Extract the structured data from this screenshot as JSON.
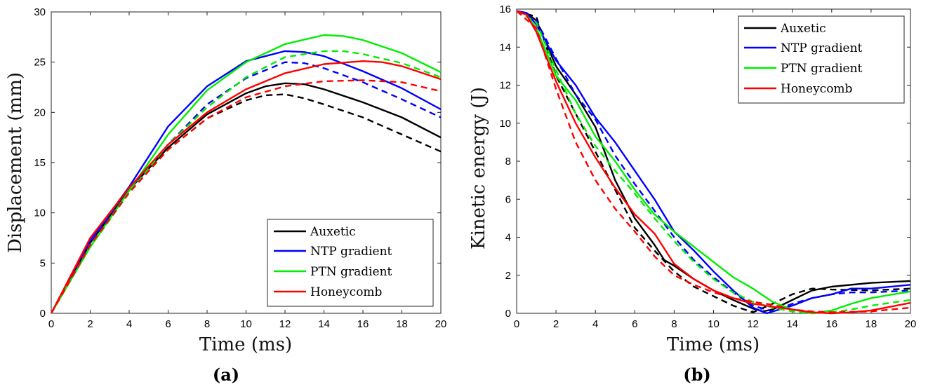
{
  "chart_data": [
    {
      "type": "line",
      "panel_label": "(a)",
      "xlabel": "Time (ms)",
      "ylabel": "Displacement (mm)",
      "xlim": [
        0,
        20
      ],
      "ylim": [
        0,
        30
      ],
      "xticks": [
        0,
        2,
        4,
        6,
        8,
        10,
        12,
        14,
        16,
        18,
        20
      ],
      "yticks": [
        0,
        5,
        10,
        15,
        20,
        25,
        30
      ],
      "grid": false,
      "legend_position": "bottom-right",
      "legend": [
        "Auxetic",
        "NTP gradient",
        "PTN gradient",
        "Honeycomb"
      ],
      "series": [
        {
          "name": "Auxetic",
          "color": "#000000",
          "style": "solid",
          "x": [
            0,
            2,
            4,
            6,
            8,
            10,
            11,
            12,
            13,
            14,
            16,
            18,
            20
          ],
          "y": [
            0,
            7.0,
            12.3,
            16.5,
            19.8,
            21.9,
            22.6,
            22.9,
            22.8,
            22.3,
            21.0,
            19.5,
            17.5
          ]
        },
        {
          "name": "Auxetic (dashed)",
          "color": "#000000",
          "style": "dashed",
          "x": [
            0,
            2,
            4,
            6,
            8,
            10,
            11,
            12,
            13,
            14,
            16,
            18,
            20
          ],
          "y": [
            0,
            6.8,
            12.1,
            16.3,
            19.4,
            21.2,
            21.7,
            21.8,
            21.4,
            20.8,
            19.5,
            17.8,
            16.1
          ]
        },
        {
          "name": "NTP gradient",
          "color": "#0000ff",
          "style": "solid",
          "x": [
            0,
            2,
            4,
            6,
            8,
            10,
            12,
            13,
            14,
            16,
            18,
            20
          ],
          "y": [
            0,
            7.3,
            12.6,
            18.6,
            22.6,
            25.1,
            26.1,
            26.0,
            25.6,
            24.1,
            22.4,
            20.3
          ]
        },
        {
          "name": "NTP gradient (dashed)",
          "color": "#0000ff",
          "style": "dashed",
          "x": [
            0,
            2,
            4,
            6,
            8,
            10,
            12,
            13,
            14,
            16,
            18,
            20
          ],
          "y": [
            0,
            7.0,
            12.2,
            16.8,
            20.8,
            23.4,
            25.0,
            24.9,
            24.4,
            23.0,
            21.3,
            19.5
          ]
        },
        {
          "name": "PTN gradient",
          "color": "#00ee00",
          "style": "solid",
          "x": [
            0,
            2,
            4,
            6,
            8,
            10,
            12,
            14,
            15,
            16,
            18,
            20
          ],
          "y": [
            0,
            6.6,
            12.2,
            17.8,
            22.2,
            25.0,
            26.8,
            27.7,
            27.6,
            27.2,
            25.9,
            24.0
          ]
        },
        {
          "name": "PTN gradient (dashed)",
          "color": "#00ee00",
          "style": "dashed",
          "x": [
            0,
            2,
            4,
            6,
            8,
            10,
            12,
            14,
            15,
            16,
            18,
            20
          ],
          "y": [
            0,
            6.6,
            12.0,
            16.8,
            20.5,
            23.5,
            25.5,
            26.1,
            26.1,
            25.8,
            24.9,
            23.5
          ]
        },
        {
          "name": "Honeycomb",
          "color": "#ff0000",
          "style": "solid",
          "x": [
            0,
            2,
            4,
            6,
            8,
            10,
            12,
            14,
            16,
            17,
            18,
            20
          ],
          "y": [
            0,
            7.5,
            12.5,
            16.8,
            20.0,
            22.3,
            23.9,
            24.8,
            25.1,
            25.0,
            24.6,
            23.3
          ]
        },
        {
          "name": "Honeycomb (dashed)",
          "color": "#ff0000",
          "style": "dashed",
          "x": [
            0,
            2,
            4,
            6,
            8,
            10,
            12,
            14,
            16,
            18,
            20
          ],
          "y": [
            0,
            6.8,
            12.0,
            16.3,
            19.4,
            21.5,
            22.6,
            23.1,
            23.2,
            23.0,
            22.1
          ]
        }
      ]
    },
    {
      "type": "line",
      "panel_label": "(b)",
      "xlabel": "Time (ms)",
      "ylabel": "Kinetic energy (J)",
      "xlim": [
        0,
        20
      ],
      "ylim": [
        0,
        16
      ],
      "xticks": [
        0,
        2,
        4,
        6,
        8,
        10,
        12,
        14,
        16,
        18,
        20
      ],
      "yticks": [
        0,
        2,
        4,
        6,
        8,
        10,
        12,
        14,
        16
      ],
      "grid": false,
      "legend_position": "top-right",
      "legend": [
        "Auxetic",
        "NTP gradient",
        "PTN gradient",
        "Honeycomb"
      ],
      "series": [
        {
          "name": "Auxetic",
          "color": "#000000",
          "style": "solid",
          "x": [
            0,
            0.5,
            1,
            2,
            3,
            4,
            5,
            6,
            7,
            7.5,
            8,
            9,
            10,
            11,
            12,
            12.5,
            13,
            14,
            15,
            16,
            18,
            20
          ],
          "y": [
            15.9,
            15.8,
            15.4,
            13.0,
            11.5,
            9.8,
            7.0,
            5.0,
            3.6,
            2.8,
            2.5,
            1.8,
            1.2,
            0.7,
            0.25,
            0.1,
            0.2,
            0.7,
            1.2,
            1.4,
            1.6,
            1.7
          ]
        },
        {
          "name": "Auxetic (dashed)",
          "color": "#000000",
          "style": "dashed",
          "x": [
            0,
            1,
            2,
            3,
            4,
            5,
            6,
            7,
            8,
            9,
            10,
            11,
            12,
            13,
            14,
            15,
            16,
            18,
            20
          ],
          "y": [
            15.9,
            15.6,
            12.5,
            10.5,
            8.5,
            6.5,
            4.5,
            3.3,
            2.2,
            1.4,
            0.9,
            0.4,
            0.05,
            0.5,
            1.0,
            1.3,
            1.25,
            1.2,
            1.3
          ]
        },
        {
          "name": "NTP gradient",
          "color": "#0000ff",
          "style": "solid",
          "x": [
            0,
            0.5,
            1,
            2,
            3,
            4,
            5,
            6,
            7,
            8,
            9,
            10,
            11,
            12,
            12.7,
            14,
            15,
            16,
            17,
            18,
            20
          ],
          "y": [
            15.9,
            15.8,
            15.2,
            13.3,
            12.0,
            10.3,
            9.0,
            7.5,
            6.0,
            4.3,
            3.3,
            2.2,
            1.2,
            0.3,
            0.0,
            0.4,
            0.8,
            1.0,
            1.3,
            1.3,
            1.5
          ]
        },
        {
          "name": "NTP gradient (dashed)",
          "color": "#0000ff",
          "style": "dashed",
          "x": [
            0,
            1,
            2,
            3,
            4,
            5,
            6,
            7,
            8,
            9,
            10,
            11,
            12,
            13,
            14,
            15,
            16,
            17,
            18,
            20
          ],
          "y": [
            15.9,
            15.4,
            13.4,
            11.5,
            10.2,
            8.3,
            6.8,
            5.4,
            4.0,
            2.8,
            1.9,
            1.1,
            0.4,
            0.1,
            0.5,
            0.8,
            1.0,
            1.1,
            1.1,
            1.2
          ]
        },
        {
          "name": "PTN gradient",
          "color": "#00ee00",
          "style": "solid",
          "x": [
            0,
            0.5,
            1,
            2,
            3,
            4,
            5,
            6,
            7,
            8,
            9,
            10,
            11,
            12,
            13,
            14,
            15,
            16,
            17,
            18,
            20
          ],
          "y": [
            15.9,
            15.7,
            15.0,
            12.5,
            11.2,
            9.3,
            8.0,
            6.5,
            5.2,
            4.3,
            3.5,
            2.7,
            1.9,
            1.3,
            0.6,
            0.2,
            0.0,
            0.15,
            0.5,
            0.8,
            1.15
          ]
        },
        {
          "name": "PTN gradient (dashed)",
          "color": "#00ee00",
          "style": "dashed",
          "x": [
            0,
            1,
            2,
            3,
            4,
            5,
            6,
            7,
            8,
            9,
            10,
            11,
            12,
            13,
            14,
            15,
            16,
            17,
            18,
            20
          ],
          "y": [
            15.9,
            15.3,
            12.8,
            10.5,
            8.8,
            7.5,
            6.3,
            5.0,
            3.8,
            2.7,
            1.8,
            1.1,
            0.6,
            0.3,
            0.1,
            0.0,
            0.05,
            0.2,
            0.4,
            0.7
          ]
        },
        {
          "name": "Honeycomb",
          "color": "#ff0000",
          "style": "solid",
          "x": [
            0,
            0.5,
            1,
            2,
            3,
            4,
            5,
            6,
            7,
            8,
            9,
            10,
            11,
            12,
            13,
            14,
            15,
            16,
            17,
            18,
            20
          ],
          "y": [
            15.9,
            15.7,
            14.8,
            12.2,
            10.0,
            8.2,
            6.6,
            5.2,
            4.2,
            2.6,
            1.8,
            1.2,
            0.8,
            0.5,
            0.35,
            0.2,
            0.05,
            0.0,
            0.05,
            0.15,
            0.55
          ]
        },
        {
          "name": "Honeycomb (dashed)",
          "color": "#ff0000",
          "style": "dashed",
          "x": [
            0,
            1,
            2,
            3,
            4,
            5,
            6,
            7,
            8,
            9,
            10,
            11,
            12,
            13,
            14,
            15,
            16,
            18,
            20
          ],
          "y": [
            15.9,
            15.0,
            11.8,
            9.0,
            7.0,
            5.5,
            4.3,
            3.0,
            2.0,
            1.5,
            1.1,
            0.8,
            0.6,
            0.45,
            0.2,
            0.1,
            0.05,
            0.1,
            0.3
          ]
        }
      ]
    }
  ]
}
